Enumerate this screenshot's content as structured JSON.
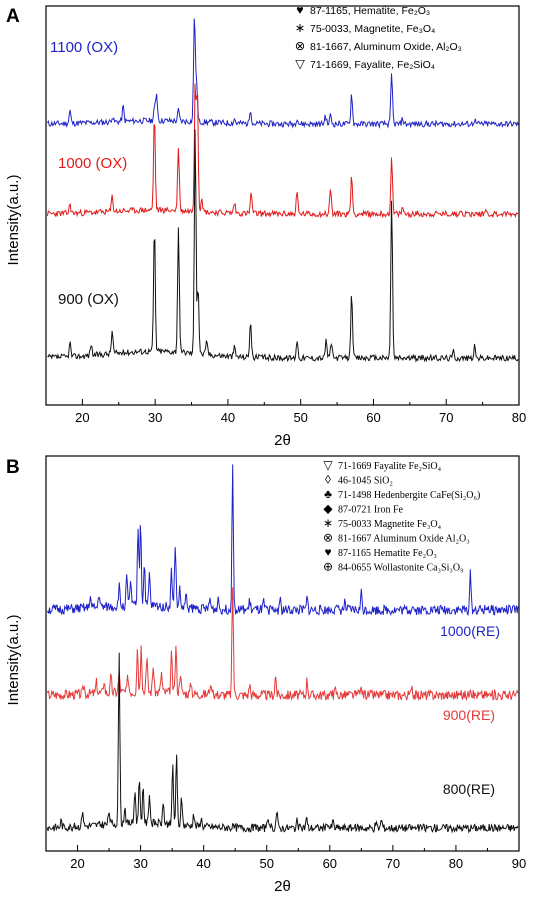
{
  "chart_data": [
    {
      "panel": "A",
      "type": "line",
      "xlabel": "2θ",
      "ylabel": "Intensity(a.u.)",
      "xlim": [
        15,
        80
      ],
      "xticks": [
        20,
        30,
        40,
        50,
        60,
        70,
        80
      ],
      "legend_position": "top-right",
      "legend": [
        {
          "symbol": "♥",
          "text": "87-1165, Hematite,  Fe₂O₃"
        },
        {
          "symbol": "∗",
          "text": "75-0033, Magnetite, Fe₃O₄"
        },
        {
          "symbol": "⊗",
          "text": "81-1667, Aluminum Oxide,  Al₂O₃"
        },
        {
          "symbol": "▽",
          "text": "71-1669, Fayalite, Fe₂SiO₄"
        }
      ],
      "series": [
        {
          "name": "1100 (OX)",
          "color": "#1f22c8",
          "peaks": [
            [
              18.3,
              0.12
            ],
            [
              24.1,
              0.05
            ],
            [
              25.6,
              0.14
            ],
            [
              29.9,
              0.12
            ],
            [
              30.2,
              0.25
            ],
            [
              33.2,
              0.1
            ],
            [
              35.4,
              1.0
            ],
            [
              35.7,
              0.35
            ],
            [
              40.9,
              0.04
            ],
            [
              43.1,
              0.14
            ],
            [
              49.5,
              0.06
            ],
            [
              53.4,
              0.08
            ],
            [
              54.1,
              0.08
            ],
            [
              57.0,
              0.28
            ],
            [
              62.5,
              0.45
            ],
            [
              64.0,
              0.05
            ],
            [
              73.9,
              0.04
            ]
          ]
        },
        {
          "name": "1000 (OX)",
          "color": "#e01a1a",
          "peaks": [
            [
              18.3,
              0.07
            ],
            [
              24.1,
              0.12
            ],
            [
              29.9,
              0.75
            ],
            [
              33.2,
              0.5
            ],
            [
              35.5,
              1.0
            ],
            [
              35.8,
              0.95
            ],
            [
              36.4,
              0.12
            ],
            [
              40.9,
              0.08
            ],
            [
              43.2,
              0.16
            ],
            [
              49.5,
              0.17
            ],
            [
              54.1,
              0.2
            ],
            [
              57.0,
              0.3
            ],
            [
              62.5,
              0.42
            ],
            [
              64.0,
              0.05
            ],
            [
              71.9,
              0.04
            ],
            [
              75.4,
              0.04
            ]
          ]
        },
        {
          "name": "900 (OX)",
          "color": "#111111",
          "peaks": [
            [
              18.3,
              0.06
            ],
            [
              21.2,
              0.05
            ],
            [
              24.1,
              0.1
            ],
            [
              29.9,
              0.55
            ],
            [
              33.2,
              0.55
            ],
            [
              35.5,
              1.0
            ],
            [
              35.9,
              0.3
            ],
            [
              37.1,
              0.06
            ],
            [
              40.9,
              0.04
            ],
            [
              43.1,
              0.16
            ],
            [
              49.5,
              0.08
            ],
            [
              53.5,
              0.08
            ],
            [
              54.2,
              0.07
            ],
            [
              57.0,
              0.3
            ],
            [
              62.5,
              0.7
            ],
            [
              71.0,
              0.03
            ],
            [
              73.9,
              0.05
            ]
          ]
        }
      ]
    },
    {
      "panel": "B",
      "type": "line",
      "xlabel": "2θ",
      "ylabel": "Intensity(a.u.)",
      "xlim": [
        15,
        90
      ],
      "xticks": [
        20,
        30,
        40,
        50,
        60,
        70,
        80,
        90
      ],
      "legend_position": "top-right",
      "legend": [
        {
          "symbol": "▽",
          "text": "71-1669 Fayalite Fe₂SiO₄"
        },
        {
          "symbol": "◊",
          "text": "46-1045 SiO₂"
        },
        {
          "symbol": "♣",
          "text": "71-1498 Hedenbergite CaFe(Si₂O₆)"
        },
        {
          "symbol": "◆",
          "text": "87-0721 Iron Fe"
        },
        {
          "symbol": "∗",
          "text": "75-0033 Magnetite Fe₃O₄"
        },
        {
          "symbol": "⊗",
          "text": "81-1667 Aluminum Oxide Al₂O₃"
        },
        {
          "symbol": "♥",
          "text": "87-1165 Hematite Fe₂O₃"
        },
        {
          "symbol": "⊕",
          "text": "84-0655 Wollastonite Ca₃Si₃O₉"
        }
      ],
      "series": [
        {
          "name": "1000(RE)",
          "color": "#1f22c8",
          "peaks": [
            [
              22.0,
              0.08
            ],
            [
              23.4,
              0.1
            ],
            [
              26.6,
              0.14
            ],
            [
              27.8,
              0.2
            ],
            [
              28.4,
              0.18
            ],
            [
              29.6,
              0.55
            ],
            [
              30.0,
              0.6
            ],
            [
              30.6,
              0.3
            ],
            [
              31.4,
              0.22
            ],
            [
              34.9,
              0.25
            ],
            [
              35.5,
              0.45
            ],
            [
              36.2,
              0.12
            ],
            [
              37.2,
              0.08
            ],
            [
              41.0,
              0.07
            ],
            [
              42.3,
              0.08
            ],
            [
              44.6,
              1.0
            ],
            [
              47.3,
              0.06
            ],
            [
              49.5,
              0.05
            ],
            [
              52.1,
              0.08
            ],
            [
              56.4,
              0.08
            ],
            [
              60.9,
              0.04
            ],
            [
              62.4,
              0.05
            ],
            [
              65.0,
              0.12
            ],
            [
              73.1,
              0.04
            ],
            [
              82.3,
              0.25
            ],
            [
              85.0,
              0.03
            ]
          ]
        },
        {
          "name": "900(RE)",
          "color": "#e53a3a",
          "peaks": [
            [
              21.0,
              0.08
            ],
            [
              23.0,
              0.1
            ],
            [
              24.2,
              0.12
            ],
            [
              25.3,
              0.14
            ],
            [
              26.6,
              0.18
            ],
            [
              28.0,
              0.15
            ],
            [
              29.5,
              0.4
            ],
            [
              30.1,
              0.38
            ],
            [
              31.0,
              0.3
            ],
            [
              32.0,
              0.25
            ],
            [
              33.3,
              0.18
            ],
            [
              34.9,
              0.35
            ],
            [
              35.6,
              0.42
            ],
            [
              36.3,
              0.2
            ],
            [
              38.0,
              0.1
            ],
            [
              41.0,
              0.08
            ],
            [
              44.6,
              1.0
            ],
            [
              47.3,
              0.1
            ],
            [
              51.4,
              0.18
            ],
            [
              56.4,
              0.14
            ],
            [
              60.9,
              0.05
            ],
            [
              65.0,
              0.07
            ],
            [
              73.0,
              0.04
            ],
            [
              82.3,
              0.09
            ]
          ]
        },
        {
          "name": "800(RE)",
          "color": "#111111",
          "peaks": [
            [
              17.4,
              0.04
            ],
            [
              20.8,
              0.1
            ],
            [
              25.0,
              0.08
            ],
            [
              26.6,
              1.0
            ],
            [
              27.5,
              0.1
            ],
            [
              29.1,
              0.2
            ],
            [
              29.8,
              0.28
            ],
            [
              30.4,
              0.22
            ],
            [
              31.4,
              0.18
            ],
            [
              33.6,
              0.12
            ],
            [
              35.1,
              0.35
            ],
            [
              35.7,
              0.4
            ],
            [
              36.5,
              0.16
            ],
            [
              38.4,
              0.07
            ],
            [
              39.6,
              0.05
            ],
            [
              50.1,
              0.06
            ],
            [
              51.6,
              0.1
            ],
            [
              54.8,
              0.04
            ],
            [
              56.3,
              0.06
            ],
            [
              59.7,
              0.03
            ],
            [
              60.5,
              0.04
            ],
            [
              67.3,
              0.03
            ],
            [
              68.2,
              0.05
            ]
          ]
        }
      ]
    }
  ]
}
